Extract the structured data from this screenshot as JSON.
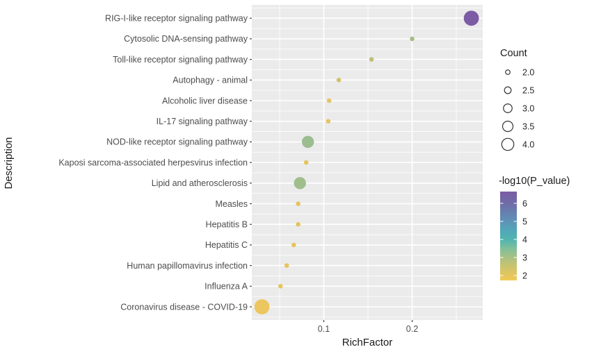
{
  "figure": {
    "background": "#ffffff",
    "panel_background": "#ebebeb",
    "grid_color": "#ffffff",
    "tick_color": "#333333",
    "axis_text_color": "#4d4d4d",
    "legend_circle_stroke": "#333333"
  },
  "chart_data": {
    "type": "scatter",
    "subtype": "bubble-dotplot-enrichment",
    "xlabel": "RichFactor",
    "ylabel": "Description",
    "x_major_ticks": [
      0.1,
      0.2
    ],
    "x_major_tick_labels": [
      "0.1",
      "0.2"
    ],
    "x_minor_ticks": [
      0.05,
      0.15,
      0.25
    ],
    "xlim": [
      0.0185,
      0.2805
    ],
    "grid": true,
    "legend_position": "right",
    "points": [
      {
        "label": "RIG-I-like receptor signaling pathway",
        "rich_factor": 0.267,
        "count": 5,
        "neglog10_p": 6.7,
        "color": "#7c5ca4"
      },
      {
        "label": "Cytosolic DNA-sensing pathway",
        "rich_factor": 0.2,
        "count": 2,
        "neglog10_p": 3.4,
        "color": "#a8bc86"
      },
      {
        "label": "Toll-like receptor signaling pathway",
        "rich_factor": 0.154,
        "count": 2,
        "neglog10_p": 3.0,
        "color": "#bfbe79"
      },
      {
        "label": "Autophagy - animal",
        "rich_factor": 0.117,
        "count": 2,
        "neglog10_p": 2.6,
        "color": "#d5c16a"
      },
      {
        "label": "Alcoholic liver disease",
        "rich_factor": 0.106,
        "count": 2,
        "neglog10_p": 2.3,
        "color": "#e3c462"
      },
      {
        "label": "IL-17 signaling pathway",
        "rich_factor": 0.105,
        "count": 2,
        "neglog10_p": 2.3,
        "color": "#e3c462"
      },
      {
        "label": "NOD-like receptor signaling pathway",
        "rich_factor": 0.082,
        "count": 4,
        "neglog10_p": 3.6,
        "color": "#9bbd90"
      },
      {
        "label": "Kaposi sarcoma-associated herpesvirus infection",
        "rich_factor": 0.08,
        "count": 2,
        "neglog10_p": 2.2,
        "color": "#e5c45f"
      },
      {
        "label": "Lipid and atherosclerosis",
        "rich_factor": 0.073,
        "count": 4,
        "neglog10_p": 3.6,
        "color": "#9fbe8c"
      },
      {
        "label": "Measles",
        "rich_factor": 0.071,
        "count": 2,
        "neglog10_p": 2.2,
        "color": "#e5c45f"
      },
      {
        "label": "Hepatitis B",
        "rich_factor": 0.071,
        "count": 2,
        "neglog10_p": 2.2,
        "color": "#e5c45f"
      },
      {
        "label": "Hepatitis C",
        "rich_factor": 0.066,
        "count": 2,
        "neglog10_p": 2.2,
        "color": "#e5c45f"
      },
      {
        "label": "Human papillomavirus infection",
        "rich_factor": 0.058,
        "count": 2,
        "neglog10_p": 2.1,
        "color": "#e6c55c"
      },
      {
        "label": "Influenza A",
        "rich_factor": 0.051,
        "count": 2,
        "neglog10_p": 2.1,
        "color": "#e6c55c"
      },
      {
        "label": "Coronavirus disease - COVID-19",
        "rich_factor": 0.03,
        "count": 5,
        "neglog10_p": 1.9,
        "color": "#ecc65e"
      }
    ],
    "legend_count": {
      "title": "Count",
      "entries": [
        {
          "label": "2.0",
          "value": 2.0
        },
        {
          "label": "2.5",
          "value": 2.5
        },
        {
          "label": "3.0",
          "value": 3.0
        },
        {
          "label": "3.5",
          "value": 3.5
        },
        {
          "label": "4.0",
          "value": 4.0
        }
      ]
    },
    "legend_color": {
      "title": "-log10(P_value)",
      "tick_labels": [
        "6",
        "5",
        "4",
        "3",
        "2"
      ],
      "tick_values": [
        6,
        5,
        4,
        3,
        2
      ],
      "value_range_top_to_bottom": [
        6.65,
        1.73
      ],
      "gradient_top_to_bottom": [
        {
          "pos": 0.0,
          "color": "#7a5ba3"
        },
        {
          "pos": 0.132,
          "color": "#6f6ca7"
        },
        {
          "pos": 0.335,
          "color": "#5e93b7"
        },
        {
          "pos": 0.44,
          "color": "#52a7b8"
        },
        {
          "pos": 0.539,
          "color": "#50b4b0"
        },
        {
          "pos": 0.64,
          "color": "#80bf9a"
        },
        {
          "pos": 0.742,
          "color": "#a9c184"
        },
        {
          "pos": 0.84,
          "color": "#c9c46e"
        },
        {
          "pos": 0.945,
          "color": "#e6c55e"
        },
        {
          "pos": 1.0,
          "color": "#eecb57"
        }
      ]
    }
  }
}
